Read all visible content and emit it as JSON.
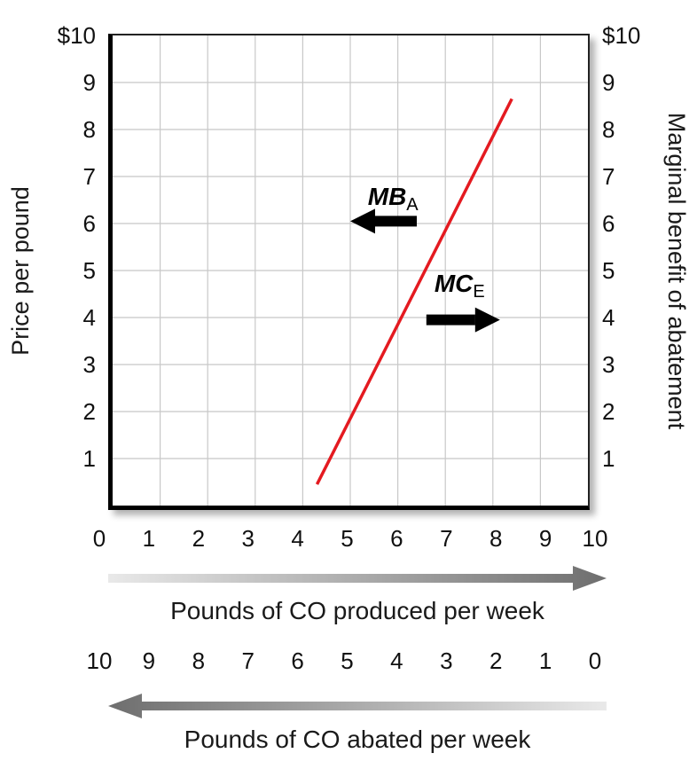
{
  "chart_data": {
    "type": "line",
    "title": "",
    "grid": true,
    "xlim": [
      0,
      10
    ],
    "ylim": [
      0,
      10
    ],
    "left_axis": {
      "label": "Price per pound",
      "ticks": [
        "$10",
        "9",
        "8",
        "7",
        "6",
        "5",
        "4",
        "3",
        "2",
        "1"
      ]
    },
    "right_axis": {
      "label": "Marginal benefit of abatement",
      "ticks": [
        "$10",
        "9",
        "8",
        "7",
        "6",
        "5",
        "4",
        "3",
        "2",
        "1"
      ]
    },
    "bottom_axis_produced": {
      "label": "Pounds of CO produced per week",
      "ticks": [
        "0",
        "1",
        "2",
        "3",
        "4",
        "5",
        "6",
        "7",
        "8",
        "9",
        "10"
      ],
      "arrow_direction": "right"
    },
    "bottom_axis_abated": {
      "label": "Pounds of CO abated per week",
      "ticks": [
        "10",
        "9",
        "8",
        "7",
        "6",
        "5",
        "4",
        "3",
        "2",
        "1",
        "0"
      ],
      "arrow_direction": "left"
    },
    "series": [
      {
        "name": "mc-mb-curve",
        "color": "#e41a20",
        "points": [
          [
            4.3,
            0.45
          ],
          [
            8.4,
            8.65
          ]
        ]
      }
    ],
    "annotations": [
      {
        "text": "MB",
        "subscript": "A",
        "arrow": "left",
        "arrow_y": 6.05,
        "arrow_tip_x": 5.0,
        "arrow_tail_x": 6.4,
        "label_x": 5.9,
        "label_y": 6.4,
        "color": "#000000"
      },
      {
        "text": "MC",
        "subscript": "E",
        "arrow": "right",
        "arrow_y": 3.95,
        "arrow_tip_x": 8.15,
        "arrow_tail_x": 6.6,
        "label_x": 7.3,
        "label_y": 4.55,
        "color": "#000000"
      }
    ],
    "colors": {
      "grid": "#c8c8c8",
      "line": "#e41a20",
      "axis_arrow_light": "#e9e9e9",
      "axis_arrow_dark": "#6e6e6e",
      "annotation": "#000000"
    }
  }
}
